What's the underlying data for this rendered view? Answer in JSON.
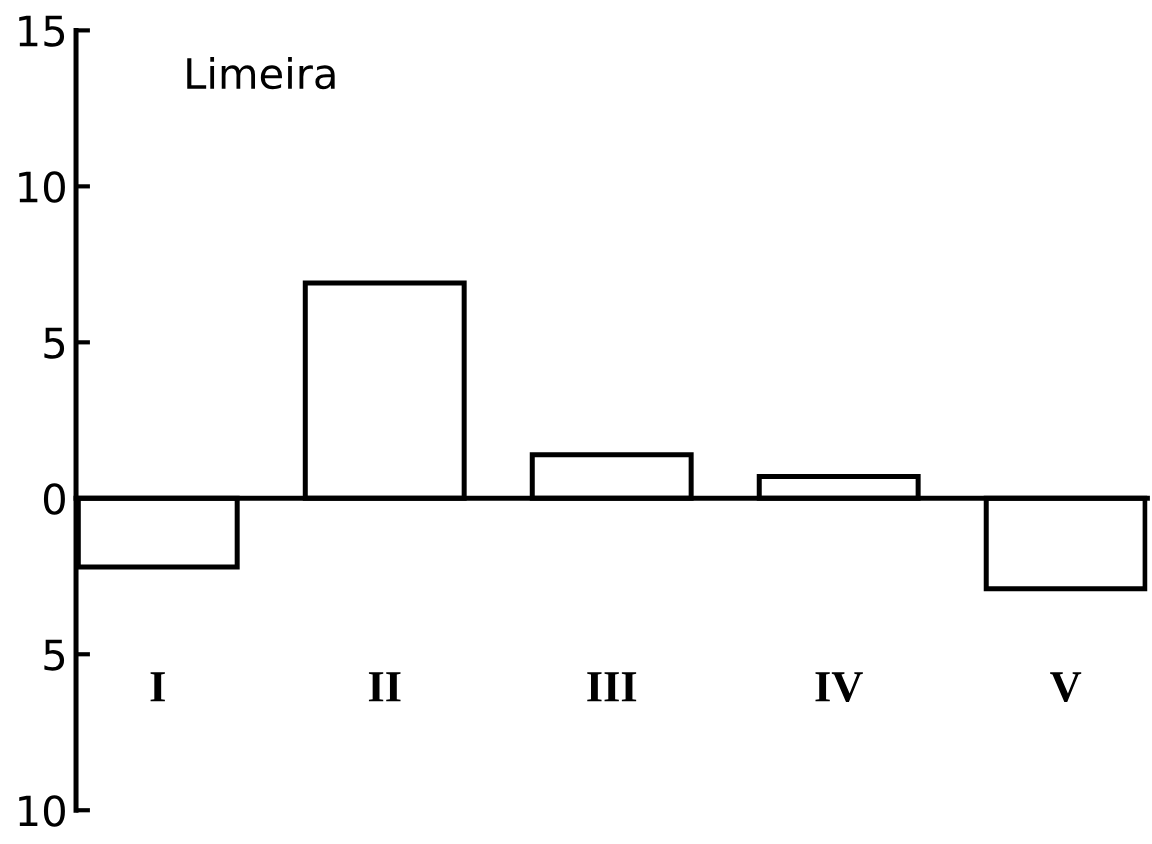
{
  "chart_data": {
    "type": "bar",
    "title": "Limeira",
    "categories": [
      "I",
      "II",
      "III",
      "IV",
      "V"
    ],
    "values": [
      -2.2,
      6.9,
      1.4,
      0.7,
      -2.9
    ],
    "color": "#ffffff",
    "ylim": [
      -10,
      15
    ],
    "yticks": [
      {
        "value": -10,
        "label": "10"
      },
      {
        "value": -5,
        "label": "5"
      },
      0,
      5,
      10,
      15
    ]
  }
}
